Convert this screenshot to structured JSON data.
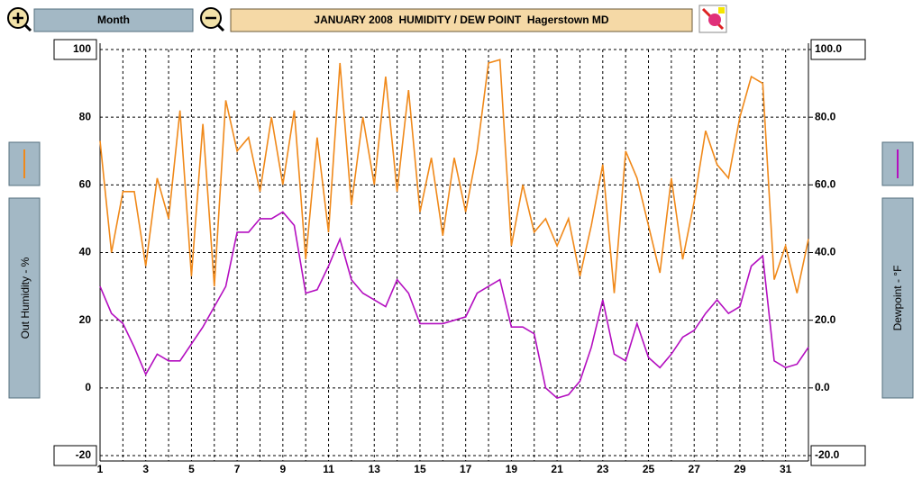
{
  "toolbar": {
    "range_button": "Month"
  },
  "chart_data": {
    "type": "line",
    "title": "JANUARY 2008  HUMIDITY / DEW POINT  Hagerstown MD",
    "x": [
      1,
      1.5,
      2,
      2.5,
      3,
      3.5,
      4,
      4.5,
      5,
      5.5,
      6,
      6.5,
      7,
      7.5,
      8,
      8.5,
      9,
      9.5,
      10,
      10.5,
      11,
      11.5,
      12,
      12.5,
      13,
      13.5,
      14,
      14.5,
      15,
      15.5,
      16,
      16.5,
      17,
      17.5,
      18,
      18.5,
      19,
      19.5,
      20,
      20.5,
      21,
      21.5,
      22,
      22.5,
      23,
      23.5,
      24,
      24.5,
      25,
      25.5,
      26,
      26.5,
      27,
      27.5,
      28,
      28.5,
      29,
      29.5,
      30,
      30.5,
      31,
      31.5,
      32
    ],
    "series": [
      {
        "name": "Out Humidity - %",
        "color": "#f0891a",
        "axis": "y",
        "values": [
          73,
          40,
          58,
          58,
          36,
          62,
          50,
          82,
          33,
          78,
          30,
          85,
          70,
          74,
          58,
          80,
          60,
          82,
          38,
          74,
          46,
          96,
          54,
          80,
          60,
          92,
          58,
          88,
          52,
          68,
          45,
          68,
          52,
          70,
          96,
          97,
          42,
          60,
          46,
          50,
          42,
          50,
          33,
          48,
          66,
          28,
          70,
          62,
          48,
          34,
          62,
          38,
          55,
          76,
          66,
          62,
          80,
          92,
          90,
          32,
          42,
          28,
          44
        ]
      },
      {
        "name": "Dewpoint - °F",
        "color": "#b40fc0",
        "axis": "y2",
        "values": [
          30,
          22,
          19,
          12,
          4,
          10,
          8,
          8,
          13,
          18,
          24,
          30,
          46,
          46,
          50,
          50,
          52,
          48,
          28,
          29,
          36,
          44,
          32,
          28,
          26,
          24,
          32,
          28,
          19,
          19,
          19,
          20,
          21,
          28,
          30,
          32,
          18,
          18,
          16,
          0,
          -3,
          -2,
          2,
          12,
          26,
          10,
          8,
          19,
          9,
          6,
          10,
          15,
          17,
          22,
          26,
          22,
          24,
          36,
          39,
          8,
          6,
          7,
          12
        ]
      }
    ],
    "xlim": [
      1,
      32
    ],
    "xticks": [
      1,
      3,
      5,
      7,
      9,
      11,
      13,
      15,
      17,
      19,
      21,
      23,
      25,
      27,
      29,
      31
    ],
    "x_minor_ticks": [
      2,
      4,
      6,
      8,
      10,
      12,
      14,
      16,
      18,
      20,
      22,
      24,
      26,
      28,
      30
    ],
    "ylim": [
      -20,
      100
    ],
    "yticks": [
      100,
      80,
      60,
      40,
      20,
      0,
      -20
    ],
    "y2lim": [
      -20,
      100
    ],
    "y2ticks": [
      {
        "value": 100,
        "label": "100.0"
      },
      {
        "value": 80,
        "label": "80.0"
      },
      {
        "value": 60,
        "label": "60.0"
      },
      {
        "value": 40,
        "label": "40.0"
      },
      {
        "value": 20,
        "label": "20.0"
      },
      {
        "value": 0,
        "label": "0.0"
      },
      {
        "value": -20,
        "label": "-20.0"
      }
    ],
    "grid": true
  }
}
